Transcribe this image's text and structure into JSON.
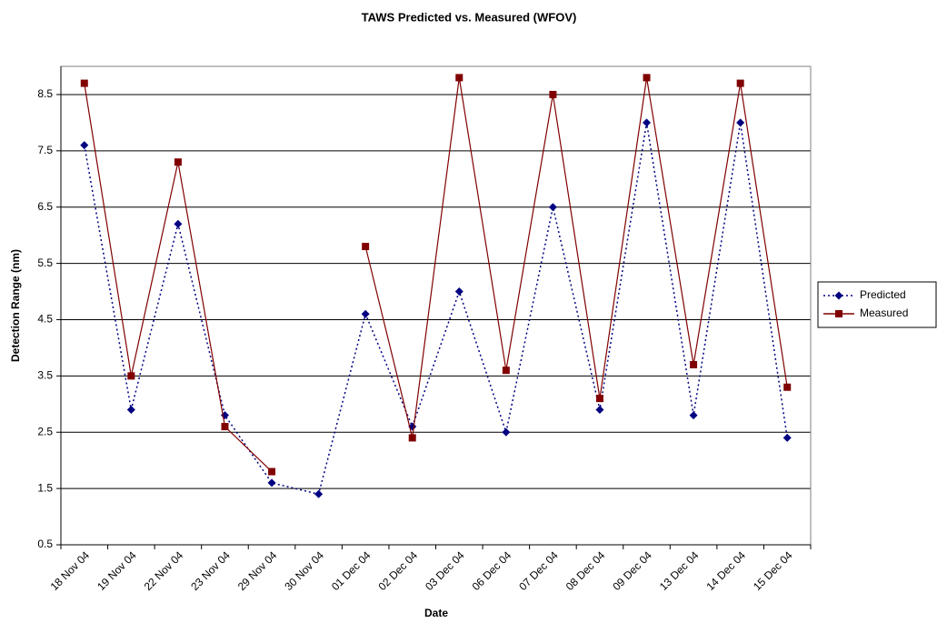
{
  "chart_data": {
    "type": "line",
    "title": "TAWS Predicted vs. Measured (WFOV)",
    "x_label": "Date",
    "y_label": "Detection Range (nm)",
    "categories": [
      "18 Nov 04",
      "19 Nov 04",
      "22 Nov 04",
      "23 Nov 04",
      "29 Nov 04",
      "30 Nov 04",
      "01 Dec 04",
      "02 Dec 04",
      "03 Dec 04",
      "06 Dec 04",
      "07 Dec 04",
      "08 Dec 04",
      "09 Dec 04",
      "13 Dec 04",
      "14 Dec 04",
      "15 Dec 04"
    ],
    "series": [
      {
        "name": "Predicted",
        "color": "#000080",
        "dash": "dotted",
        "marker": "diamond",
        "values": [
          7.6,
          2.9,
          6.2,
          2.8,
          1.6,
          1.4,
          4.6,
          2.6,
          5.0,
          2.5,
          6.5,
          2.9,
          8.0,
          2.8,
          8.0,
          2.4
        ]
      },
      {
        "name": "Measured",
        "color": "#800000",
        "dash": "solid",
        "marker": "square",
        "values": [
          8.7,
          3.5,
          7.3,
          2.6,
          1.8,
          null,
          5.8,
          2.4,
          8.8,
          3.6,
          8.5,
          3.1,
          8.8,
          3.7,
          8.7,
          3.3
        ]
      }
    ],
    "ylim": [
      0.5,
      9.0
    ],
    "yticks": [
      0.5,
      1.5,
      2.5,
      3.5,
      4.5,
      5.5,
      6.5,
      7.5,
      8.5
    ],
    "grid": true,
    "legend": "right"
  }
}
